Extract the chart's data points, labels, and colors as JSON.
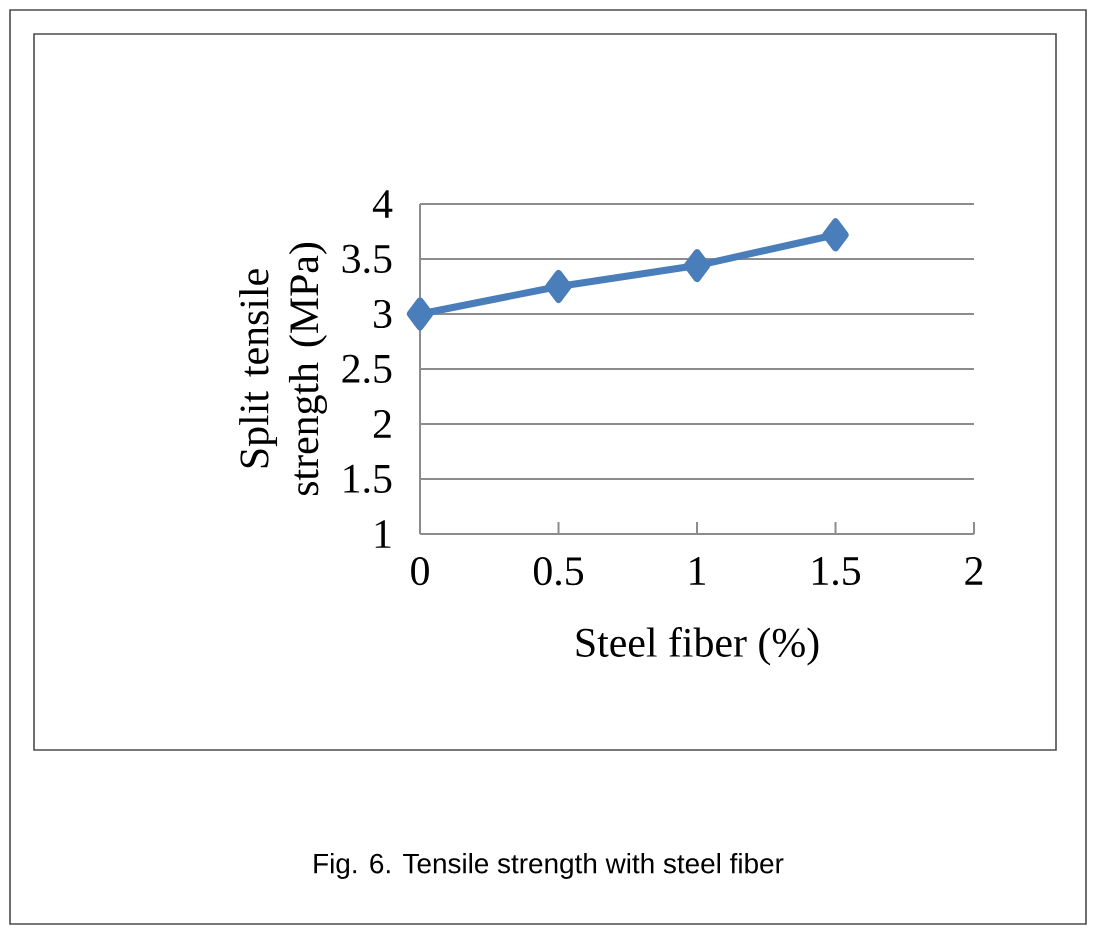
{
  "chart_data": {
    "type": "line",
    "xlabel": "Steel fiber (%)",
    "ylabel": "Split tensile strength (MPa)",
    "x": [
      0,
      0.5,
      1,
      1.5
    ],
    "series": [
      {
        "color": "#4a7ebb",
        "values": [
          3.0,
          3.25,
          3.44,
          3.72
        ]
      }
    ],
    "xlim": [
      0,
      2
    ],
    "xticks": [
      0,
      0.5,
      1,
      1.5,
      2
    ],
    "ylim": [
      1,
      4
    ],
    "yticks": [
      1,
      1.5,
      2,
      2.5,
      3,
      3.5,
      4
    ],
    "grid": "y",
    "marker": "diamond",
    "line_style": "solid",
    "annotations": [
      "Fig. 6. Tensile strength with steel fiber"
    ]
  }
}
